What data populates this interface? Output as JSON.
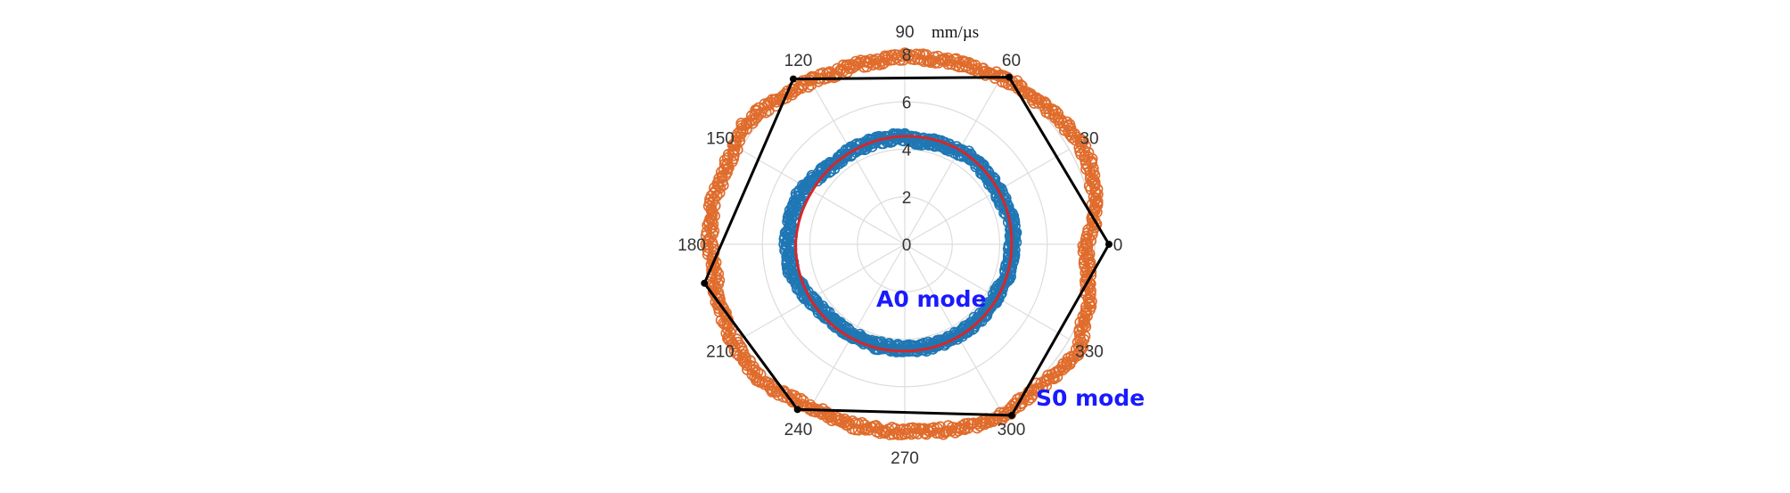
{
  "chart_data": {
    "type": "polar-scatter",
    "radial_unit": "mm/µs",
    "r_range": [
      0,
      8
    ],
    "r_ticks": [
      "0",
      "2",
      "4",
      "6",
      "8"
    ],
    "theta_ticks": [
      "0",
      "30",
      "60",
      "90",
      "120",
      "150",
      "180",
      "210",
      "240",
      "270",
      "300",
      "330"
    ],
    "grid": true,
    "annotations": [
      {
        "text": "A0 mode",
        "color": "#1a1aff"
      },
      {
        "text": "S0 mode",
        "color": "#1a1aff"
      }
    ],
    "series": [
      {
        "marker": "open-circle",
        "color": "#e06c2c",
        "theta_deg": [
          0,
          6,
          12,
          18,
          24,
          30,
          36,
          42,
          48,
          54,
          60,
          66,
          72,
          78,
          84,
          90,
          96,
          102,
          108,
          114,
          120,
          126,
          132,
          138,
          144,
          150,
          156,
          162,
          168,
          174,
          180,
          186,
          192,
          198,
          204,
          210,
          216,
          222,
          228,
          234,
          240,
          246,
          252,
          258,
          264,
          270,
          276,
          282,
          288,
          294,
          300,
          306,
          312,
          318,
          324,
          330,
          336,
          342,
          348,
          354
        ],
        "r": [
          7.7,
          8.1,
          8.3,
          8.4,
          8.6,
          8.6,
          8.5,
          8.4,
          8.3,
          8.3,
          8.2,
          8.1,
          8.1,
          8.0,
          8.0,
          8.0,
          7.9,
          7.9,
          7.9,
          7.9,
          8.0,
          8.1,
          8.2,
          8.4,
          8.5,
          8.3,
          8.3,
          8.3,
          8.4,
          8.3,
          8.3,
          8.2,
          8.2,
          8.3,
          8.3,
          8.4,
          8.4,
          8.4,
          8.3,
          8.1,
          8.0,
          8.0,
          8.0,
          8.0,
          8.0,
          8.0,
          8.0,
          8.1,
          8.2,
          8.3,
          8.4,
          8.3,
          8.3,
          8.4,
          8.6,
          8.6,
          8.3,
          8.2,
          8.0,
          7.8
        ]
      },
      {
        "marker": "open-circle",
        "color": "#1f77b4",
        "theta_deg": [
          0,
          6,
          12,
          18,
          24,
          30,
          36,
          42,
          48,
          54,
          60,
          66,
          72,
          78,
          84,
          90,
          96,
          102,
          108,
          114,
          120,
          126,
          132,
          138,
          144,
          150,
          156,
          162,
          168,
          174,
          180,
          186,
          192,
          198,
          204,
          210,
          216,
          222,
          228,
          234,
          240,
          246,
          252,
          258,
          264,
          270,
          276,
          282,
          288,
          294,
          300,
          306,
          312,
          318,
          324,
          330,
          336,
          342,
          348,
          354
        ],
        "r": [
          4.6,
          4.7,
          4.7,
          4.6,
          4.6,
          4.6,
          4.6,
          4.6,
          4.7,
          4.7,
          4.6,
          4.6,
          4.6,
          4.5,
          4.5,
          4.6,
          4.6,
          4.6,
          4.6,
          4.6,
          4.6,
          4.6,
          4.6,
          4.7,
          4.8,
          4.9,
          5.0,
          5.0,
          5.0,
          5.0,
          5.0,
          5.0,
          5.0,
          4.9,
          4.8,
          4.7,
          4.6,
          4.5,
          4.5,
          4.5,
          4.5,
          4.5,
          4.5,
          4.5,
          4.5,
          4.5,
          4.5,
          4.5,
          4.5,
          4.5,
          4.5,
          4.5,
          4.5,
          4.5,
          4.5,
          4.5,
          4.5,
          4.6,
          4.6,
          4.6
        ]
      },
      {
        "type": "line",
        "color": "#d62728",
        "theta_deg": [
          0,
          30,
          60,
          90,
          120,
          150,
          180,
          210,
          240,
          270,
          300,
          330,
          360
        ],
        "r": [
          4.5,
          4.55,
          4.6,
          4.55,
          4.5,
          4.5,
          4.6,
          4.6,
          4.55,
          4.5,
          4.5,
          4.5,
          4.5
        ]
      },
      {
        "type": "line",
        "color": "#000000",
        "marker": "dot",
        "theta_deg": [
          0,
          58,
          124,
          191,
          237,
          302,
          360
        ],
        "r": [
          8.6,
          8.3,
          8.4,
          8.6,
          8.3,
          8.5,
          8.6
        ]
      }
    ]
  }
}
